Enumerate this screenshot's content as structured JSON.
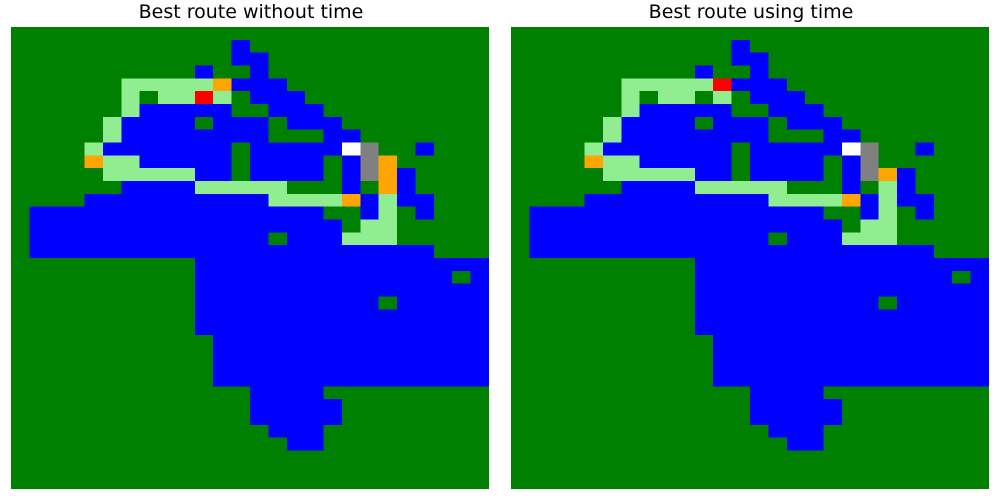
{
  "palette": {
    "0": "#008000",
    "1": "#0000ff",
    "2": "#90ee90",
    "3": "#ffa500",
    "4": "#ff0000",
    "5": "#ffffff",
    "6": "#808080"
  },
  "chart_data": [
    {
      "type": "heatmap",
      "title": "Best route without time",
      "xlabel": "",
      "ylabel": "",
      "grid": false,
      "rows": [
        "00000000000000000000000000",
        "00000000000010000000000000",
        "00000000000011000000000000",
        "00000000001001000000000000",
        "00000022222311100000000000",
        "00000020224201110000000000",
        "00000021111100111000000000",
        "00000211110111011100000000",
        "00000211111111000110000000",
        "00002111111101111156001000",
        "00003221111101111016300000",
        "00000222221101111016310000",
        "00000011112222200010310000",
        "00001111111111222231211000",
        "01111111111111111001201000",
        "01111111111111111102200000",
        "01111111111111011122200000",
        "01111111111111111111111000",
        "00000000001111111111111111",
        "00000000001111111111111101",
        "00000000001111111111111111",
        "00000000001111111111011111",
        "00000000001111111111111111",
        "00000000001111111111111111",
        "00000000000111111111111111",
        "00000000000111111111111111",
        "00000000000111111111111111",
        "00000000000111111111111111",
        "00000000000001111000000000",
        "00000000000001111100000000",
        "00000000000001111100000000",
        "00000000000000111000000000",
        "00000000000000011000000000",
        "00000000000000000000000000",
        "00000000000000000000000000",
        "00000000000000000000000000"
      ]
    },
    {
      "type": "heatmap",
      "title": "Best route using time",
      "xlabel": "",
      "ylabel": "",
      "grid": false,
      "rows": [
        "00000000000000000000000000",
        "00000000000010000000000000",
        "00000000000011000000000000",
        "00000000001001000000000000",
        "00000022222411100000000000",
        "00000020220201110000000000",
        "00000021111100111000000000",
        "00000211110111011100000000",
        "00000211111111000110000000",
        "00002111111101111156001000",
        "00003221111101111016000000",
        "00000222221101111016310000",
        "00000011112222200010210000",
        "00001111111111222231211000",
        "01111111111111111001201000",
        "01111111111111111102200000",
        "01111111111111011122200000",
        "01111111111111111111111000",
        "00000000001111111111111111",
        "00000000001111111111111101",
        "00000000001111111111111111",
        "00000000001111111111011111",
        "00000000001111111111111111",
        "00000000001111111111111111",
        "00000000000111111111111111",
        "00000000000111111111111111",
        "00000000000111111111111111",
        "00000000000111111111111111",
        "00000000000001111000000000",
        "00000000000001111100000000",
        "00000000000001111100000000",
        "00000000000000111000000000",
        "00000000000000011000000000",
        "00000000000000000000000000",
        "00000000000000000000000000",
        "00000000000000000000000000"
      ]
    }
  ]
}
